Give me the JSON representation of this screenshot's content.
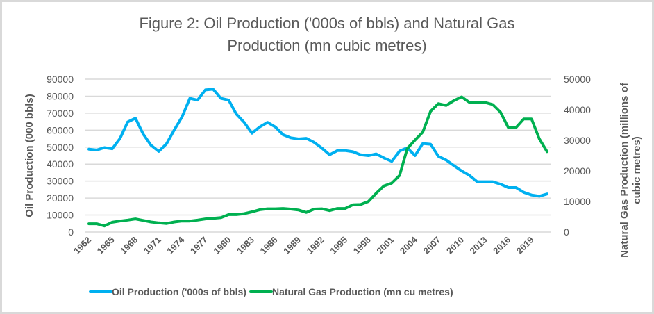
{
  "chart_data": {
    "type": "line",
    "title_line1": "Figure 2: Oil Production ('000s of bbls) and Natural Gas",
    "title_line2": "Production (mn cubic metres)",
    "xlabel": "",
    "ylabel": "Oil Production (000 bbls)",
    "y2label_line1": "Natural Gas Production  (millions of",
    "y2label_line2": "cubic metres)",
    "ylim": [
      0,
      90000
    ],
    "y2lim": [
      0,
      50000
    ],
    "yticks": [
      "0",
      "10000",
      "20000",
      "30000",
      "40000",
      "50000",
      "60000",
      "70000",
      "80000",
      "90000"
    ],
    "y2ticks": [
      "0",
      "10000",
      "20000",
      "30000",
      "40000",
      "50000"
    ],
    "grid": true,
    "legend_position": "bottom",
    "x": [
      1962,
      1963,
      1964,
      1965,
      1966,
      1967,
      1968,
      1969,
      1970,
      1971,
      1972,
      1973,
      1974,
      1975,
      1976,
      1977,
      1978,
      1979,
      1980,
      1981,
      1982,
      1983,
      1984,
      1985,
      1986,
      1987,
      1988,
      1989,
      1990,
      1991,
      1992,
      1993,
      1994,
      1995,
      1996,
      1997,
      1998,
      1999,
      2000,
      2001,
      2002,
      2003,
      2004,
      2005,
      2006,
      2007,
      2008,
      2009,
      2010,
      2011,
      2012,
      2013,
      2014,
      2015,
      2016,
      2017,
      2018,
      2019,
      2020,
      2021
    ],
    "xtick_labels": [
      "1962",
      "1965",
      "1968",
      "1971",
      "1974",
      "1977",
      "1980",
      "1983",
      "1986",
      "1989",
      "1992",
      "1995",
      "1998",
      "2001",
      "2004",
      "2007",
      "2010",
      "2013",
      "2016",
      "2019"
    ],
    "series": [
      {
        "name": "Oil Production ('000s of bbls)",
        "axis": "left",
        "color": "#00b0f0",
        "values": [
          48800,
          48300,
          49700,
          49000,
          55000,
          64800,
          67000,
          57700,
          51100,
          47500,
          52000,
          60200,
          67800,
          78700,
          77700,
          83700,
          84100,
          78700,
          77700,
          69400,
          64600,
          58200,
          61900,
          64600,
          61900,
          57300,
          55500,
          54800,
          55200,
          52800,
          49400,
          45500,
          48000,
          48000,
          47300,
          45500,
          45000,
          46000,
          43600,
          41600,
          47700,
          49600,
          45000,
          52100,
          51700,
          44600,
          42400,
          39100,
          36000,
          33400,
          29600,
          29600,
          29600,
          28200,
          26200,
          26200,
          23400,
          21800,
          21100,
          22400
        ]
      },
      {
        "name": "Natural Gas Production (mn cu metres)",
        "axis": "right",
        "color": "#00b050",
        "values": [
          2700,
          2700,
          2000,
          3200,
          3600,
          3900,
          4300,
          3800,
          3300,
          3000,
          2800,
          3300,
          3600,
          3600,
          3900,
          4300,
          4500,
          4700,
          5700,
          5700,
          6000,
          6600,
          7300,
          7600,
          7600,
          7700,
          7500,
          7200,
          6400,
          7500,
          7600,
          7000,
          7700,
          7700,
          8900,
          9000,
          10000,
          12700,
          15100,
          16000,
          18500,
          27300,
          30100,
          32700,
          39500,
          42000,
          41400,
          43000,
          44200,
          42400,
          42400,
          42400,
          41700,
          39200,
          34200,
          34200,
          37000,
          37000,
          30500,
          26300
        ]
      }
    ]
  }
}
